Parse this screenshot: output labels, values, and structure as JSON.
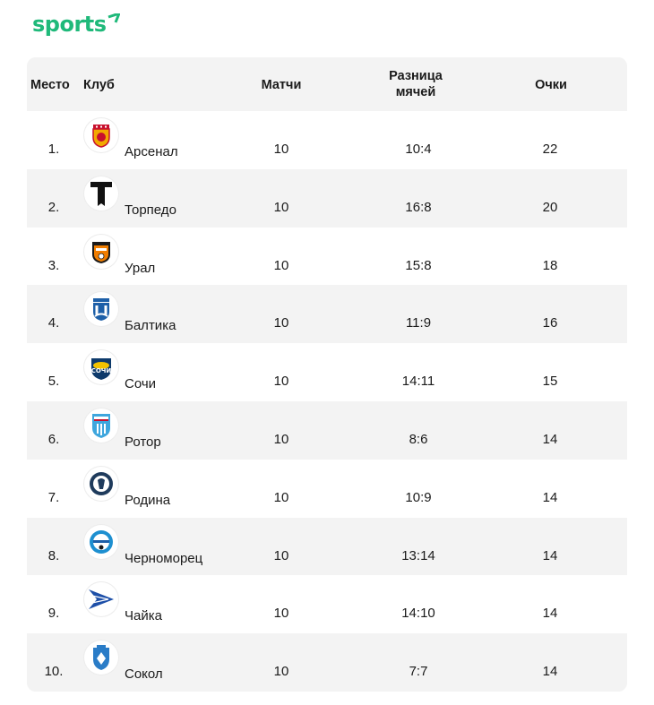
{
  "brand": {
    "logo_text": "sports",
    "accent_color": "#1fb97a"
  },
  "table": {
    "headers": {
      "place": "Место",
      "club": "Клуб",
      "matches": "Матчи",
      "goal_diff_line1": "Разница",
      "goal_diff_line2": "мячей",
      "points": "Очки"
    },
    "rows": [
      {
        "place": "1.",
        "club": "Арсенал",
        "matches": "10",
        "goal_diff": "10:4",
        "points": "22",
        "crest": "arsenal-crest-icon"
      },
      {
        "place": "2.",
        "club": "Торпедо",
        "matches": "10",
        "goal_diff": "16:8",
        "points": "20",
        "crest": "torpedo-crest-icon"
      },
      {
        "place": "3.",
        "club": "Урал",
        "matches": "10",
        "goal_diff": "15:8",
        "points": "18",
        "crest": "ural-crest-icon"
      },
      {
        "place": "4.",
        "club": "Балтика",
        "matches": "10",
        "goal_diff": "11:9",
        "points": "16",
        "crest": "baltika-crest-icon"
      },
      {
        "place": "5.",
        "club": "Сочи",
        "matches": "10",
        "goal_diff": "14:11",
        "points": "15",
        "crest": "sochi-crest-icon"
      },
      {
        "place": "6.",
        "club": "Ротор",
        "matches": "10",
        "goal_diff": "8:6",
        "points": "14",
        "crest": "rotor-crest-icon"
      },
      {
        "place": "7.",
        "club": "Родина",
        "matches": "10",
        "goal_diff": "10:9",
        "points": "14",
        "crest": "rodina-crest-icon"
      },
      {
        "place": "8.",
        "club": "Черноморец",
        "matches": "10",
        "goal_diff": "13:14",
        "points": "14",
        "crest": "chernomorets-crest-icon"
      },
      {
        "place": "9.",
        "club": "Чайка",
        "matches": "10",
        "goal_diff": "14:10",
        "points": "14",
        "crest": "chayka-crest-icon"
      },
      {
        "place": "10.",
        "club": "Сокол",
        "matches": "10",
        "goal_diff": "7:7",
        "points": "14",
        "crest": "sokol-crest-icon"
      }
    ]
  }
}
